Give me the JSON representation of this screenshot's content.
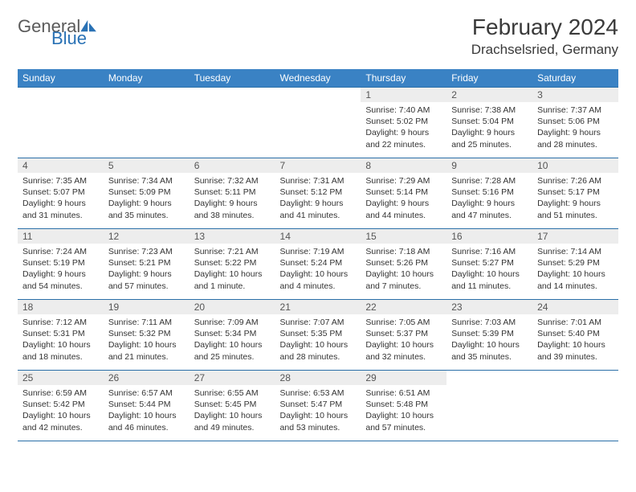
{
  "logo": {
    "text1": "General",
    "text2": "Blue"
  },
  "title": "February 2024",
  "location": "Drachselsried, Germany",
  "colors": {
    "header_bg": "#3a82c4",
    "header_text": "#ffffff",
    "daynum_bg": "#ededed",
    "border": "#2a6fa8",
    "logo_gray": "#5a5a5a",
    "logo_blue": "#2a72b5"
  },
  "weekdays": [
    "Sunday",
    "Monday",
    "Tuesday",
    "Wednesday",
    "Thursday",
    "Friday",
    "Saturday"
  ],
  "weeks": [
    [
      {
        "empty": true
      },
      {
        "empty": true
      },
      {
        "empty": true
      },
      {
        "empty": true
      },
      {
        "day": "1",
        "sunrise": "Sunrise: 7:40 AM",
        "sunset": "Sunset: 5:02 PM",
        "daylight1": "Daylight: 9 hours",
        "daylight2": "and 22 minutes."
      },
      {
        "day": "2",
        "sunrise": "Sunrise: 7:38 AM",
        "sunset": "Sunset: 5:04 PM",
        "daylight1": "Daylight: 9 hours",
        "daylight2": "and 25 minutes."
      },
      {
        "day": "3",
        "sunrise": "Sunrise: 7:37 AM",
        "sunset": "Sunset: 5:06 PM",
        "daylight1": "Daylight: 9 hours",
        "daylight2": "and 28 minutes."
      }
    ],
    [
      {
        "day": "4",
        "sunrise": "Sunrise: 7:35 AM",
        "sunset": "Sunset: 5:07 PM",
        "daylight1": "Daylight: 9 hours",
        "daylight2": "and 31 minutes."
      },
      {
        "day": "5",
        "sunrise": "Sunrise: 7:34 AM",
        "sunset": "Sunset: 5:09 PM",
        "daylight1": "Daylight: 9 hours",
        "daylight2": "and 35 minutes."
      },
      {
        "day": "6",
        "sunrise": "Sunrise: 7:32 AM",
        "sunset": "Sunset: 5:11 PM",
        "daylight1": "Daylight: 9 hours",
        "daylight2": "and 38 minutes."
      },
      {
        "day": "7",
        "sunrise": "Sunrise: 7:31 AM",
        "sunset": "Sunset: 5:12 PM",
        "daylight1": "Daylight: 9 hours",
        "daylight2": "and 41 minutes."
      },
      {
        "day": "8",
        "sunrise": "Sunrise: 7:29 AM",
        "sunset": "Sunset: 5:14 PM",
        "daylight1": "Daylight: 9 hours",
        "daylight2": "and 44 minutes."
      },
      {
        "day": "9",
        "sunrise": "Sunrise: 7:28 AM",
        "sunset": "Sunset: 5:16 PM",
        "daylight1": "Daylight: 9 hours",
        "daylight2": "and 47 minutes."
      },
      {
        "day": "10",
        "sunrise": "Sunrise: 7:26 AM",
        "sunset": "Sunset: 5:17 PM",
        "daylight1": "Daylight: 9 hours",
        "daylight2": "and 51 minutes."
      }
    ],
    [
      {
        "day": "11",
        "sunrise": "Sunrise: 7:24 AM",
        "sunset": "Sunset: 5:19 PM",
        "daylight1": "Daylight: 9 hours",
        "daylight2": "and 54 minutes."
      },
      {
        "day": "12",
        "sunrise": "Sunrise: 7:23 AM",
        "sunset": "Sunset: 5:21 PM",
        "daylight1": "Daylight: 9 hours",
        "daylight2": "and 57 minutes."
      },
      {
        "day": "13",
        "sunrise": "Sunrise: 7:21 AM",
        "sunset": "Sunset: 5:22 PM",
        "daylight1": "Daylight: 10 hours",
        "daylight2": "and 1 minute."
      },
      {
        "day": "14",
        "sunrise": "Sunrise: 7:19 AM",
        "sunset": "Sunset: 5:24 PM",
        "daylight1": "Daylight: 10 hours",
        "daylight2": "and 4 minutes."
      },
      {
        "day": "15",
        "sunrise": "Sunrise: 7:18 AM",
        "sunset": "Sunset: 5:26 PM",
        "daylight1": "Daylight: 10 hours",
        "daylight2": "and 7 minutes."
      },
      {
        "day": "16",
        "sunrise": "Sunrise: 7:16 AM",
        "sunset": "Sunset: 5:27 PM",
        "daylight1": "Daylight: 10 hours",
        "daylight2": "and 11 minutes."
      },
      {
        "day": "17",
        "sunrise": "Sunrise: 7:14 AM",
        "sunset": "Sunset: 5:29 PM",
        "daylight1": "Daylight: 10 hours",
        "daylight2": "and 14 minutes."
      }
    ],
    [
      {
        "day": "18",
        "sunrise": "Sunrise: 7:12 AM",
        "sunset": "Sunset: 5:31 PM",
        "daylight1": "Daylight: 10 hours",
        "daylight2": "and 18 minutes."
      },
      {
        "day": "19",
        "sunrise": "Sunrise: 7:11 AM",
        "sunset": "Sunset: 5:32 PM",
        "daylight1": "Daylight: 10 hours",
        "daylight2": "and 21 minutes."
      },
      {
        "day": "20",
        "sunrise": "Sunrise: 7:09 AM",
        "sunset": "Sunset: 5:34 PM",
        "daylight1": "Daylight: 10 hours",
        "daylight2": "and 25 minutes."
      },
      {
        "day": "21",
        "sunrise": "Sunrise: 7:07 AM",
        "sunset": "Sunset: 5:35 PM",
        "daylight1": "Daylight: 10 hours",
        "daylight2": "and 28 minutes."
      },
      {
        "day": "22",
        "sunrise": "Sunrise: 7:05 AM",
        "sunset": "Sunset: 5:37 PM",
        "daylight1": "Daylight: 10 hours",
        "daylight2": "and 32 minutes."
      },
      {
        "day": "23",
        "sunrise": "Sunrise: 7:03 AM",
        "sunset": "Sunset: 5:39 PM",
        "daylight1": "Daylight: 10 hours",
        "daylight2": "and 35 minutes."
      },
      {
        "day": "24",
        "sunrise": "Sunrise: 7:01 AM",
        "sunset": "Sunset: 5:40 PM",
        "daylight1": "Daylight: 10 hours",
        "daylight2": "and 39 minutes."
      }
    ],
    [
      {
        "day": "25",
        "sunrise": "Sunrise: 6:59 AM",
        "sunset": "Sunset: 5:42 PM",
        "daylight1": "Daylight: 10 hours",
        "daylight2": "and 42 minutes."
      },
      {
        "day": "26",
        "sunrise": "Sunrise: 6:57 AM",
        "sunset": "Sunset: 5:44 PM",
        "daylight1": "Daylight: 10 hours",
        "daylight2": "and 46 minutes."
      },
      {
        "day": "27",
        "sunrise": "Sunrise: 6:55 AM",
        "sunset": "Sunset: 5:45 PM",
        "daylight1": "Daylight: 10 hours",
        "daylight2": "and 49 minutes."
      },
      {
        "day": "28",
        "sunrise": "Sunrise: 6:53 AM",
        "sunset": "Sunset: 5:47 PM",
        "daylight1": "Daylight: 10 hours",
        "daylight2": "and 53 minutes."
      },
      {
        "day": "29",
        "sunrise": "Sunrise: 6:51 AM",
        "sunset": "Sunset: 5:48 PM",
        "daylight1": "Daylight: 10 hours",
        "daylight2": "and 57 minutes."
      },
      {
        "empty": true
      },
      {
        "empty": true
      }
    ]
  ]
}
